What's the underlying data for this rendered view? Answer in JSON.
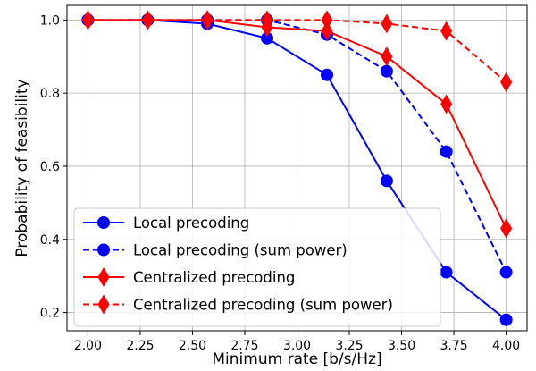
{
  "chart_data": {
    "type": "line",
    "xlabel": "Minimum rate [b/s/Hz]",
    "ylabel": "Probability of feasibility",
    "xlim": [
      1.9,
      4.1
    ],
    "ylim": [
      0.15,
      1.04
    ],
    "xticks": [
      2.0,
      2.25,
      2.5,
      2.75,
      3.0,
      3.25,
      3.5,
      3.75,
      4.0
    ],
    "xtick_labels": [
      "2.00",
      "2.25",
      "2.50",
      "2.75",
      "3.00",
      "3.25",
      "3.50",
      "3.75",
      "4.00"
    ],
    "yticks": [
      0.2,
      0.4,
      0.6,
      0.8,
      1.0
    ],
    "ytick_labels": [
      "0.2",
      "0.4",
      "0.6",
      "0.8",
      "1.0"
    ],
    "grid": true,
    "legend_position": "bottom-left",
    "x": [
      2.0,
      2.286,
      2.571,
      2.857,
      3.143,
      3.429,
      3.714,
      4.0
    ],
    "series": [
      {
        "name": "Local precoding",
        "color": "#0000ff",
        "linestyle": "solid",
        "marker": "circle",
        "values": [
          1.0,
          1.0,
          0.99,
          0.95,
          0.85,
          0.56,
          0.31,
          0.18
        ]
      },
      {
        "name": "Local precoding (sum power)",
        "color": "#0000ff",
        "linestyle": "dashed",
        "marker": "circle",
        "values": [
          1.0,
          1.0,
          1.0,
          1.0,
          0.96,
          0.86,
          0.64,
          0.31
        ]
      },
      {
        "name": "Centralized precoding",
        "color": "#ff0000",
        "linestyle": "solid",
        "marker": "diamond",
        "values": [
          1.0,
          1.0,
          1.0,
          0.98,
          0.97,
          0.9,
          0.77,
          0.43
        ]
      },
      {
        "name": "Centralized precoding (sum power)",
        "color": "#ff0000",
        "linestyle": "dashed",
        "marker": "diamond",
        "values": [
          1.0,
          1.0,
          1.0,
          1.0,
          1.0,
          0.99,
          0.97,
          0.83
        ]
      }
    ]
  }
}
